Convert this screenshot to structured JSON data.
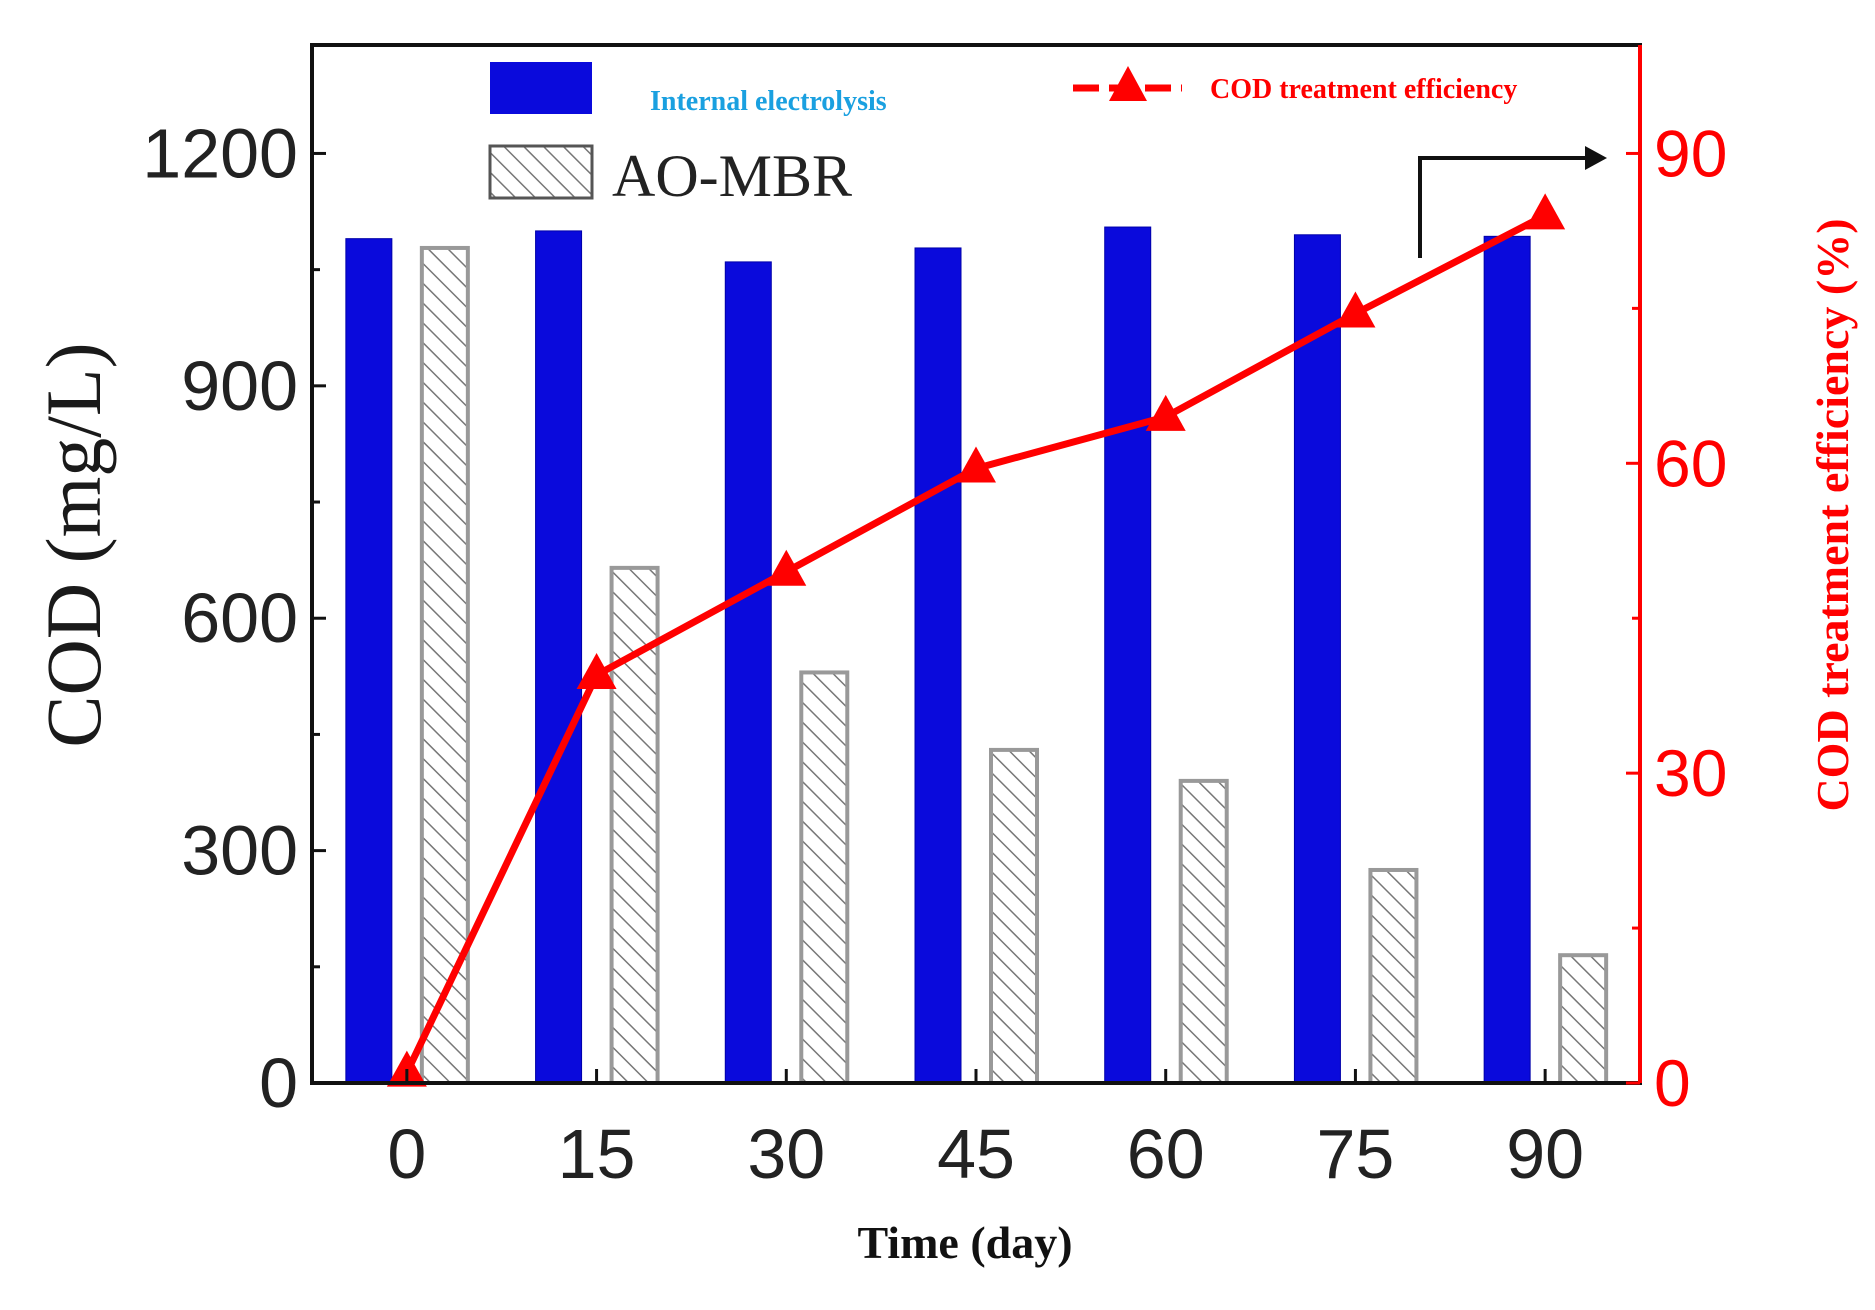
{
  "chart_data": {
    "type": "bar+line",
    "xlabel": "Time (day)",
    "ylabel": "COD (mg/L)",
    "y2label": "COD treatment efficiency (%)",
    "categories": [
      "0",
      "15",
      "30",
      "45",
      "60",
      "75",
      "90"
    ],
    "ylim": [
      0,
      1340
    ],
    "yticks": [
      0,
      300,
      600,
      900,
      1200
    ],
    "y2lim": [
      0,
      100.5
    ],
    "y2ticks": [
      0,
      30,
      60,
      90
    ],
    "legend_position": "top",
    "series": [
      {
        "name": "Internal electrolysis",
        "type": "bar",
        "color": "#0a0adc",
        "values": [
          1090,
          1100,
          1060,
          1078,
          1105,
          1095,
          1093
        ]
      },
      {
        "name": "AO-MBR",
        "type": "bar",
        "pattern": "hatched",
        "color": "#777777",
        "values": [
          1078,
          665,
          530,
          430,
          390,
          275,
          165
        ]
      },
      {
        "name": "COD treatment efficiency",
        "type": "line",
        "axis": "right",
        "color": "#ff0000",
        "values": [
          1,
          39.5,
          49.5,
          59.5,
          64.5,
          74.5,
          84
        ]
      }
    ]
  }
}
